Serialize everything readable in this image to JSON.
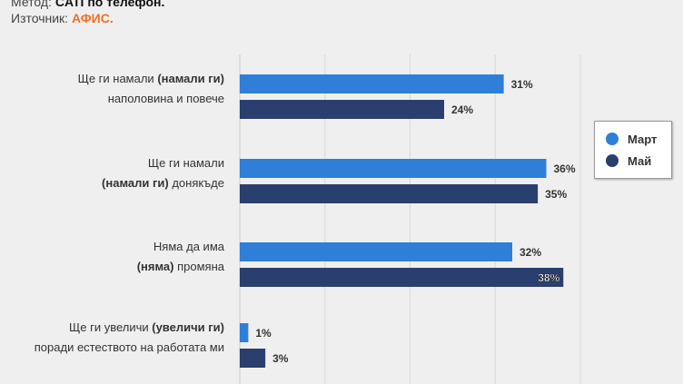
{
  "meta": {
    "method_label": "Метод:",
    "method_value": "CATI по телефон.",
    "source_label": "Източник:",
    "source_value": "АФИС."
  },
  "colors": {
    "mart": "#2f7ed8",
    "may": "#2b3f6e",
    "source": "#f07020"
  },
  "chart_data": {
    "type": "bar",
    "orientation": "horizontal",
    "categories": [
      [
        {
          "t": "Ще ги намали ",
          "b": false
        },
        {
          "t": "(намали ги)",
          "b": true
        },
        {
          "t": "\nнаполовина и повече",
          "b": false
        }
      ],
      [
        {
          "t": "Ще ги намали",
          "b": false
        },
        {
          "t": "\n(намали ги)",
          "b": true
        },
        {
          "t": " донякъде",
          "b": false
        }
      ],
      [
        {
          "t": "Няма да има",
          "b": false
        },
        {
          "t": "\n(няма)",
          "b": true
        },
        {
          "t": " промяна",
          "b": false
        }
      ],
      [
        {
          "t": "Ще ги увеличи ",
          "b": false
        },
        {
          "t": "(увеличи ги)",
          "b": true
        },
        {
          "t": "\nпоради естеството на работата ми",
          "b": false
        }
      ]
    ],
    "series": [
      {
        "name": "Март",
        "values": [
          31,
          36,
          32,
          1
        ],
        "labels": [
          "31%",
          "36%",
          "32%",
          "1%"
        ]
      },
      {
        "name": "Май",
        "values": [
          24,
          35,
          38,
          3
        ],
        "labels": [
          "24%",
          "35%",
          "38%",
          "3%"
        ]
      }
    ],
    "xlim": [
      0,
      40
    ],
    "grid": true,
    "legend": "right"
  }
}
